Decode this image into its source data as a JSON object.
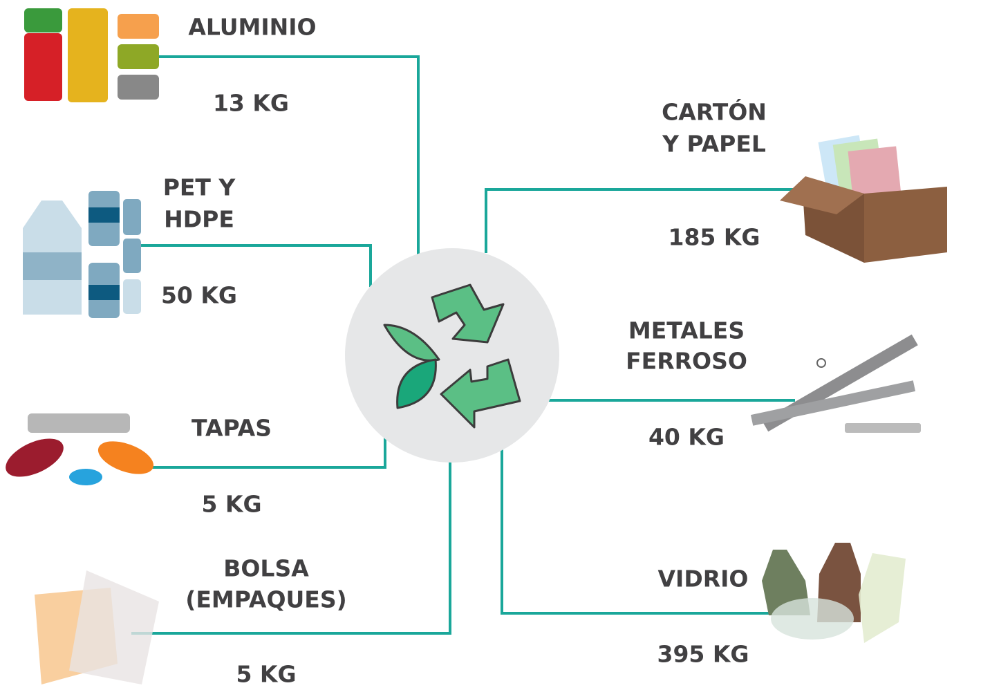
{
  "nodes": [
    {
      "label": [
        "ALUMINIO"
      ],
      "amount": "13 KG"
    },
    {
      "label": [
        "PET Y",
        "HDPE"
      ],
      "amount": "50 KG"
    },
    {
      "label": [
        "TAPAS"
      ],
      "amount": "5 KG"
    },
    {
      "label": [
        "BOLSA",
        "(EMPAQUES)"
      ],
      "amount": "5 KG"
    },
    {
      "label": [
        "CARTÓN",
        "Y PAPEL"
      ],
      "amount": "185 KG"
    },
    {
      "label": [
        "METALES",
        "FERROSO"
      ],
      "amount": "40 KG"
    },
    {
      "label": [
        "VIDRIO"
      ],
      "amount": "395 KG"
    }
  ]
}
